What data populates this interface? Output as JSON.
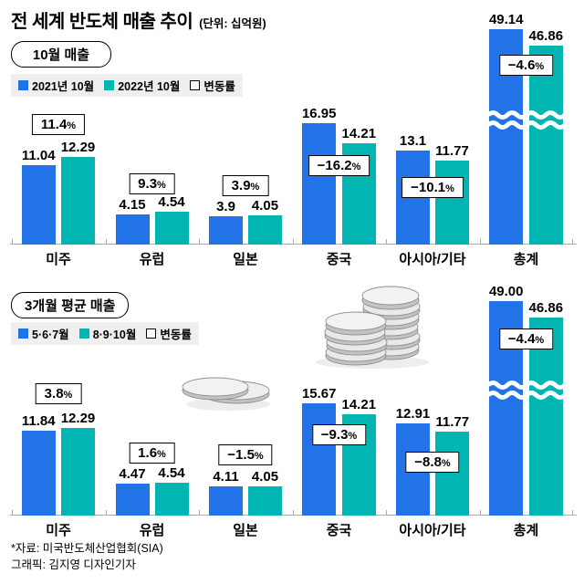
{
  "title": "전 세계 반도체 매출 추이",
  "unit_note": "(단위: 십억원)",
  "percent_sign": "%",
  "colors": {
    "series1": "#2272e8",
    "series2": "#00b5b2",
    "legend_bg": "#efefef"
  },
  "top_chart": {
    "badge": "10월 매출",
    "legend": {
      "s1": "2021년 10월",
      "s2": "2022년 10월",
      "s3": "변동률"
    },
    "groups": [
      {
        "category": "미주",
        "v1": "11.04",
        "v2": "12.29",
        "change": "11.4"
      },
      {
        "category": "유럽",
        "v1": "4.15",
        "v2": "4.54",
        "change": "9.3"
      },
      {
        "category": "일본",
        "v1": "3.9",
        "v2": "4.05",
        "change": "3.9"
      },
      {
        "category": "중국",
        "v1": "16.95",
        "v2": "14.21",
        "change": "−16.2"
      },
      {
        "category": "아시아/기타",
        "v1": "13.1",
        "v2": "11.77",
        "change": "−10.1"
      },
      {
        "category": "총계",
        "v1": "49.14",
        "v2": "46.86",
        "change": "−4.6"
      }
    ]
  },
  "bottom_chart": {
    "badge": "3개월 평균 매출",
    "legend": {
      "s1": "5·6·7월",
      "s2": "8·9·10월",
      "s3": "변동률"
    },
    "groups": [
      {
        "category": "미주",
        "v1": "11.84",
        "v2": "12.29",
        "change": "3.8"
      },
      {
        "category": "유럽",
        "v1": "4.47",
        "v2": "4.54",
        "change": "1.6"
      },
      {
        "category": "일본",
        "v1": "4.11",
        "v2": "4.05",
        "change": "−1.5"
      },
      {
        "category": "중국",
        "v1": "15.67",
        "v2": "14.21",
        "change": "−9.3"
      },
      {
        "category": "아시아/기타",
        "v1": "12.91",
        "v2": "11.77",
        "change": "−8.8"
      },
      {
        "category": "총계",
        "v1": "49.00",
        "v2": "46.86",
        "change": "−4.4"
      }
    ]
  },
  "footer": {
    "source": "*자료: 미국반도체산업협회(SIA)",
    "credit": "그래픽: 김지영 디자인기자"
  },
  "chart_data": [
    {
      "type": "bar",
      "title": "10월 매출",
      "unit": "십억원",
      "categories": [
        "미주",
        "유럽",
        "일본",
        "중국",
        "아시아/기타",
        "총계"
      ],
      "series": [
        {
          "name": "2021년 10월",
          "values": [
            11.04,
            4.15,
            3.9,
            16.95,
            13.1,
            49.14
          ]
        },
        {
          "name": "2022년 10월",
          "values": [
            12.29,
            4.54,
            4.05,
            14.21,
            11.77,
            46.86
          ]
        }
      ],
      "change_pct": [
        11.4,
        9.3,
        3.9,
        -16.2,
        -10.1,
        -4.6
      ],
      "legend_position": "top-left",
      "grid": false,
      "axis_break_on_category": "총계"
    },
    {
      "type": "bar",
      "title": "3개월 평균 매출",
      "unit": "십억원",
      "categories": [
        "미주",
        "유럽",
        "일본",
        "중국",
        "아시아/기타",
        "총계"
      ],
      "series": [
        {
          "name": "5·6·7월",
          "values": [
            11.84,
            4.47,
            4.11,
            15.67,
            12.91,
            49.0
          ]
        },
        {
          "name": "8·9·10월",
          "values": [
            12.29,
            4.54,
            4.05,
            14.21,
            11.77,
            46.86
          ]
        }
      ],
      "change_pct": [
        3.8,
        1.6,
        -1.5,
        -9.3,
        -8.8,
        -4.4
      ],
      "legend_position": "top-left",
      "grid": false,
      "axis_break_on_category": "총계"
    }
  ]
}
